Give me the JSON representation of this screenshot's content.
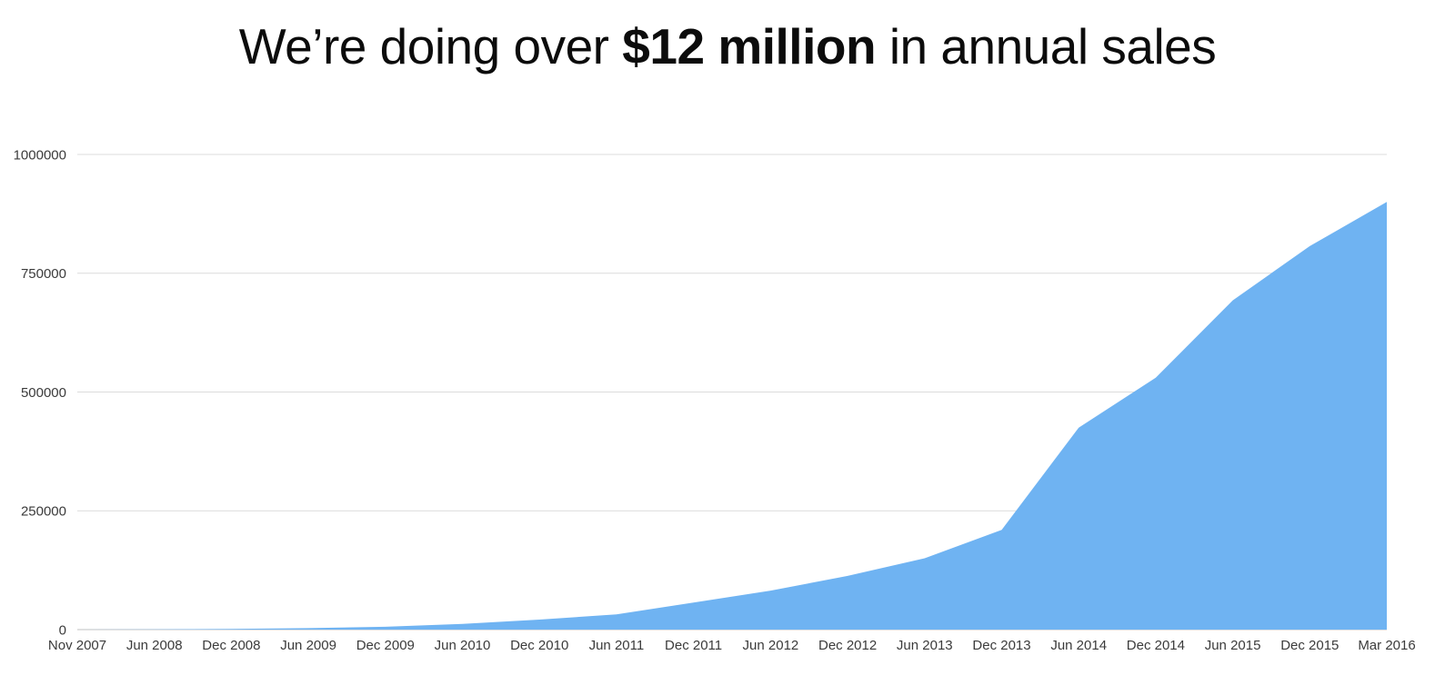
{
  "title": {
    "prefix": "We’re doing over ",
    "highlight": "$12 million",
    "suffix": " in annual sales"
  },
  "chart_data": {
    "type": "area",
    "title": "We’re doing over $12 million in annual sales",
    "xlabel": "",
    "ylabel": "",
    "x_labels": [
      "Nov 2007",
      "Jun 2008",
      "Dec 2008",
      "Jun 2009",
      "Dec 2009",
      "Jun 2010",
      "Dec 2010",
      "Jun 2011",
      "Dec 2011",
      "Jun 2012",
      "Dec 2012",
      "Jun 2013",
      "Dec 2013",
      "Jun 2014",
      "Dec 2014",
      "Jun 2015",
      "Dec 2015",
      "Mar 2016"
    ],
    "values": [
      0,
      500,
      1500,
      3000,
      6000,
      12000,
      21000,
      32000,
      57000,
      82000,
      113000,
      150000,
      210000,
      425000,
      530000,
      693000,
      807000,
      900000
    ],
    "y_ticks": [
      0,
      250000,
      500000,
      750000,
      1000000
    ],
    "y_tick_labels": [
      "0",
      "250000",
      "500000",
      "750000",
      "1000000"
    ],
    "ylim": [
      0,
      1000000
    ],
    "grid": true,
    "legend_position": "none",
    "colors": {
      "area_fill": "#6fb3f2",
      "grid_line": "#dcdcdc",
      "baseline": "#c2c2c2",
      "tick_text": "#3b3b3b"
    }
  }
}
